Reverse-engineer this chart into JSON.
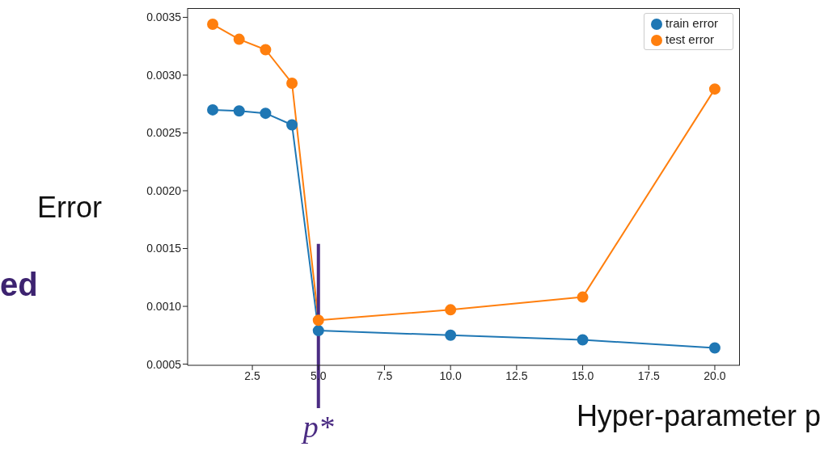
{
  "chart_data": {
    "type": "line",
    "xlabel": "Hyper-parameter p",
    "ylabel": "Error",
    "x": [
      1,
      2,
      3,
      4,
      5,
      10,
      15,
      20
    ],
    "series": [
      {
        "name": "train error",
        "color": "#1f77b4",
        "values": [
          0.0027,
          0.00269,
          0.00267,
          0.00257,
          0.00079,
          0.00075,
          0.00071,
          0.00064
        ]
      },
      {
        "name": "test error",
        "color": "#ff7f0e",
        "values": [
          0.00344,
          0.00331,
          0.00322,
          0.00293,
          0.00088,
          0.00097,
          0.00108,
          0.00288
        ]
      }
    ],
    "xlim": [
      0.05,
      20.95
    ],
    "ylim": [
      0.00049,
      0.00358
    ],
    "xticks": [
      {
        "value": 2.5,
        "label": "2.5"
      },
      {
        "value": 5,
        "label": "5.0"
      },
      {
        "value": 7.5,
        "label": "7.5"
      },
      {
        "value": 10,
        "label": "10.0"
      },
      {
        "value": 12.5,
        "label": "12.5"
      },
      {
        "value": 15,
        "label": "15.0"
      },
      {
        "value": 17.5,
        "label": "17.5"
      },
      {
        "value": 20,
        "label": "20.0"
      }
    ],
    "yticks": [
      {
        "value": 0.0005,
        "label": "0.0005"
      },
      {
        "value": 0.001,
        "label": "0.0010"
      },
      {
        "value": 0.0015,
        "label": "0.0015"
      },
      {
        "value": 0.002,
        "label": "0.0020"
      },
      {
        "value": 0.0025,
        "label": "0.0025"
      },
      {
        "value": 0.003,
        "label": "0.0030"
      },
      {
        "value": 0.0035,
        "label": "0.0035"
      }
    ],
    "ref_lines": [
      {
        "axis": "x",
        "value": 5,
        "label": "p*",
        "color": "#4b2c83"
      }
    ],
    "annotations": [
      "ed"
    ],
    "grid": false,
    "legend": "top right",
    "marker": "circle",
    "line_style": "solid"
  }
}
